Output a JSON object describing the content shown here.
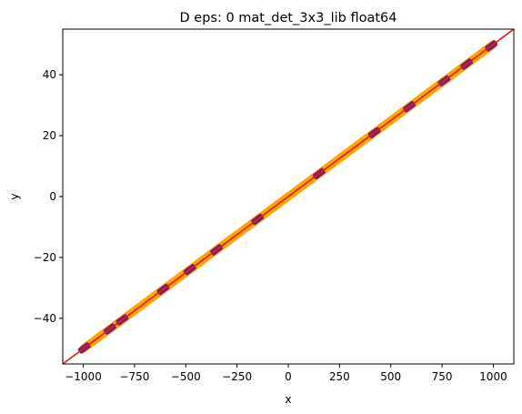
{
  "chart_data": {
    "type": "line",
    "title": "D eps: 0 mat_det_3x3_lib float64",
    "xlabel": "x",
    "ylabel": "y",
    "xlim": [
      -1100,
      1100
    ],
    "ylim": [
      -55,
      55
    ],
    "grid": false,
    "xticks": [
      -1000,
      -750,
      -500,
      -250,
      0,
      250,
      500,
      750,
      1000
    ],
    "yticks": [
      -40,
      -20,
      0,
      20,
      40
    ],
    "xtick_labels": [
      "−1000",
      "−750",
      "−500",
      "−250",
      "0",
      "250",
      "500",
      "750",
      "1000"
    ],
    "ytick_labels": [
      "−40",
      "−20",
      "0",
      "20",
      "40"
    ],
    "series": [
      {
        "color": "#e41a1c",
        "style": "solid",
        "x": [
          -1100,
          1100
        ],
        "y": [
          -55,
          55
        ]
      },
      {
        "color": "#ffa500",
        "style": "thick band",
        "x": [
          -1000,
          1000
        ],
        "y": [
          -50,
          50
        ]
      },
      {
        "color": "#7b1f6e",
        "style": "markers",
        "x": [
          -995,
          -870,
          -810,
          -610,
          -480,
          -350,
          -150,
          150,
          420,
          590,
          760,
          870,
          990
        ],
        "y": [
          -49.75,
          -43.5,
          -40.5,
          -30.5,
          -24,
          -17.5,
          -7.5,
          7.5,
          21,
          29.5,
          38,
          43.5,
          49.5
        ]
      },
      {
        "color": "#555555",
        "style": "dashed",
        "x": [
          -1000,
          1000
        ],
        "y": [
          -50,
          50
        ]
      }
    ]
  }
}
